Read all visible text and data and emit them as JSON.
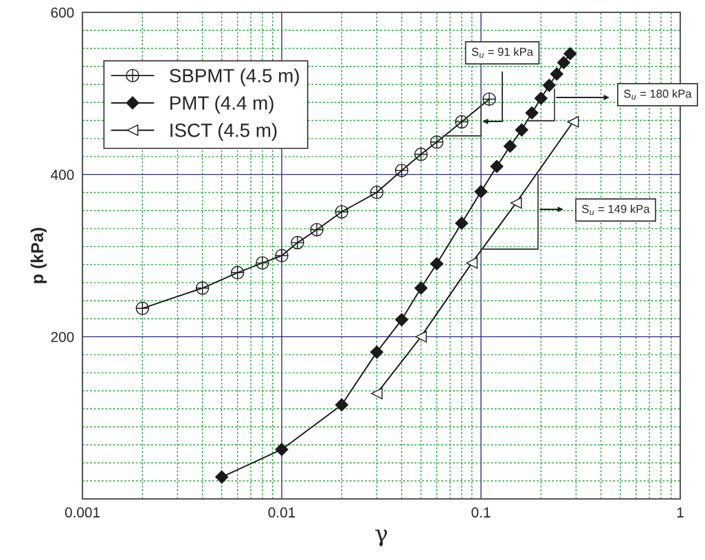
{
  "chart_data": {
    "type": "line",
    "xlabel": "γ",
    "ylabel": "p (kPa)",
    "log": "x",
    "xlim": [
      0.001,
      1
    ],
    "xticks": [
      0.001,
      {
        "value": 0.002,
        "label": null
      },
      {
        "value": 0.003,
        "label": null
      },
      {
        "value": 0.004,
        "label": null
      },
      {
        "value": 0.005,
        "label": null
      },
      {
        "value": 0.006,
        "label": null
      },
      {
        "value": 0.007,
        "label": null
      },
      {
        "value": 0.008,
        "label": null
      },
      {
        "value": 0.009,
        "label": null
      },
      0.01,
      {
        "value": 0.02,
        "label": null
      },
      {
        "value": 0.03,
        "label": null
      },
      {
        "value": 0.04,
        "label": null
      },
      {
        "value": 0.05,
        "label": null
      },
      {
        "value": 0.06,
        "label": null
      },
      {
        "value": 0.07,
        "label": null
      },
      {
        "value": 0.08,
        "label": null
      },
      {
        "value": 0.09,
        "label": null
      },
      0.1,
      {
        "value": 0.2,
        "label": null
      },
      {
        "value": 0.3,
        "label": null
      },
      {
        "value": 0.4,
        "label": null
      },
      {
        "value": 0.5,
        "label": null
      },
      {
        "value": 0.6,
        "label": null
      },
      {
        "value": 0.7,
        "label": null
      },
      {
        "value": 0.8,
        "label": null
      },
      {
        "value": 0.9,
        "label": null
      },
      1
    ],
    "ylim": [
      0,
      600
    ],
    "yticks": [
      {
        "value": 22.2,
        "label": null
      },
      {
        "value": 44.4,
        "label": null
      },
      {
        "value": 66.7,
        "label": null
      },
      {
        "value": 88.9,
        "label": null
      },
      {
        "value": 111.1,
        "label": null
      },
      {
        "value": 133.3,
        "label": null
      },
      {
        "value": 155.6,
        "label": null
      },
      {
        "value": 177.8,
        "label": null
      },
      200,
      {
        "value": 222.2,
        "label": null
      },
      {
        "value": 244.4,
        "label": null
      },
      {
        "value": 266.7,
        "label": null
      },
      {
        "value": 288.9,
        "label": null
      },
      {
        "value": 311.1,
        "label": null
      },
      {
        "value": 333.3,
        "label": null
      },
      {
        "value": 355.6,
        "label": null
      },
      {
        "value": 377.8,
        "label": null
      },
      400,
      {
        "value": 422.2,
        "label": null
      },
      {
        "value": 444.4,
        "label": null
      },
      {
        "value": 466.7,
        "label": null
      },
      {
        "value": 488.9,
        "label": null
      },
      {
        "value": 511.1,
        "label": null
      },
      {
        "value": 533.3,
        "label": null
      },
      {
        "value": 555.6,
        "label": null
      },
      {
        "value": 577.8,
        "label": null
      },
      600
    ],
    "grid": true,
    "legend": "top left",
    "series": [
      {
        "name": "SBPMT (4.5 m)",
        "color": "#1a1a1a",
        "marker": "cross",
        "x": [
          0.002,
          0.004,
          0.006,
          0.008,
          0.01,
          0.012,
          0.015,
          0.02,
          0.03,
          0.04,
          0.05,
          0.06,
          0.08,
          0.11
        ],
        "values": [
          235,
          260,
          279,
          291,
          300,
          316,
          332,
          354,
          378,
          405,
          425,
          440,
          465,
          493
        ]
      },
      {
        "name": "PMT (4.4 m)",
        "color": "#1a1a1a",
        "marker": "diamond",
        "x": [
          0.005,
          0.01,
          0.02,
          0.03,
          0.04,
          0.05,
          0.06,
          0.08,
          0.1,
          0.12,
          0.14,
          0.16,
          0.18,
          0.2,
          0.22,
          0.24,
          0.26,
          0.28
        ],
        "values": [
          27,
          61,
          116,
          181,
          221,
          260,
          290,
          340,
          379,
          410,
          435,
          455,
          476,
          494,
          510,
          524,
          538,
          549
        ]
      },
      {
        "name": "ISCT (4.5 m)",
        "color": "#1a1a1a",
        "marker": "triangle",
        "x": [
          0.03,
          0.05,
          0.09,
          0.15,
          0.29
        ],
        "values": [
          130,
          200,
          291,
          365,
          465
        ]
      }
    ],
    "annotations": [
      "S$_{u}$ = 91 kPa",
      "S$_{u}$ = 180 kPa",
      "S$_{u}$ = 149 kPa"
    ]
  }
}
